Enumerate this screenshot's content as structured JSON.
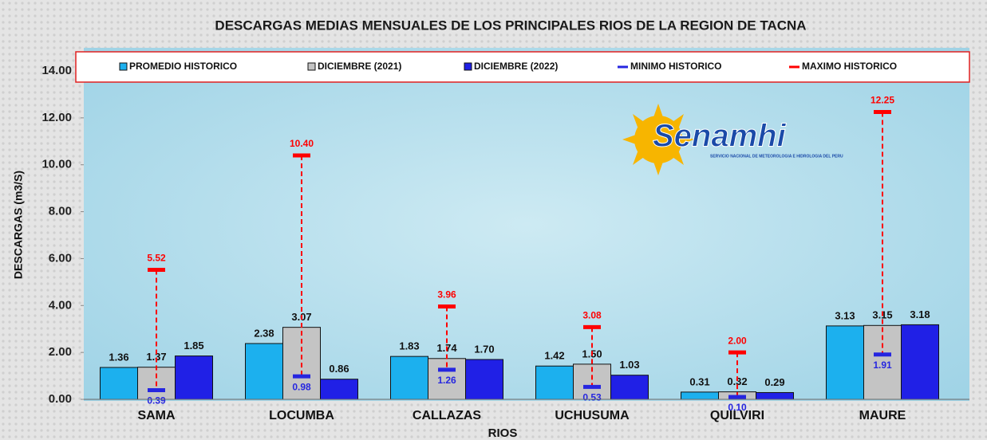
{
  "chart_data": {
    "type": "bar",
    "title": "DESCARGAS MEDIAS MENSUALES DE LOS PRINCIPALES RIOS DE LA REGION DE TACNA",
    "x_label": "RIOS",
    "y_label": "DESCARGAS  (m3/S)",
    "logo": "Senamhi",
    "logo_subtitle": "SERVICIO NACIONAL DE METEOROLOGIA E HIDROLOGIA DEL PERU",
    "categories": [
      "SAMA",
      "LOCUMBA",
      "CALLAZAS",
      "UCHUSUMA",
      "QUILVIRI",
      "MAURE"
    ],
    "ylim": [
      0,
      14
    ],
    "yticks": [
      {
        "value": 0,
        "label": "0.00"
      },
      {
        "value": 2,
        "label": "2.00"
      },
      {
        "value": 4,
        "label": "4.00"
      },
      {
        "value": 6,
        "label": "6.00"
      },
      {
        "value": 8,
        "label": "8.00"
      },
      {
        "value": 10,
        "label": "10.00"
      },
      {
        "value": 12,
        "label": "12.00"
      },
      {
        "value": 14,
        "label": "14.00"
      }
    ],
    "series": [
      {
        "name": "PROMEDIO HISTORICO",
        "kind": "bar",
        "color": "#1cb0ee",
        "values": [
          1.36,
          2.38,
          1.83,
          1.42,
          0.31,
          3.13
        ],
        "value_labels": [
          "1.36",
          "2.38",
          "1.83",
          "1.42",
          "0.31",
          "3.13"
        ]
      },
      {
        "name": "DICIEMBRE (2021)",
        "kind": "bar",
        "color": "#c4c4c4",
        "values": [
          1.37,
          3.07,
          1.74,
          1.5,
          0.32,
          3.15
        ],
        "value_labels": [
          "1.37",
          "3.07",
          "1.74",
          "1.50",
          "0.32",
          "3.15"
        ]
      },
      {
        "name": "DICIEMBRE (2022)",
        "kind": "bar",
        "color": "#2020e6",
        "values": [
          1.85,
          0.86,
          1.7,
          1.03,
          0.29,
          3.18
        ],
        "value_labels": [
          "1.85",
          "0.86",
          "1.70",
          "1.03",
          "0.29",
          "3.18"
        ]
      },
      {
        "name": "MINIMO HISTORICO",
        "kind": "min",
        "color": "#2626e0",
        "values": [
          0.39,
          0.98,
          1.26,
          0.53,
          0.1,
          1.91
        ],
        "value_labels": [
          "0.39",
          "0.98",
          "1.26",
          "0.53",
          "0.10",
          "1.91"
        ]
      },
      {
        "name": "MAXIMO HISTORICO",
        "kind": "max",
        "color": "#ff0000",
        "values": [
          5.52,
          10.4,
          3.96,
          3.08,
          2.0,
          12.25
        ],
        "value_labels": [
          "5.52",
          "10.40",
          "3.96",
          "3.08",
          "2.00",
          "12.25"
        ]
      }
    ]
  }
}
